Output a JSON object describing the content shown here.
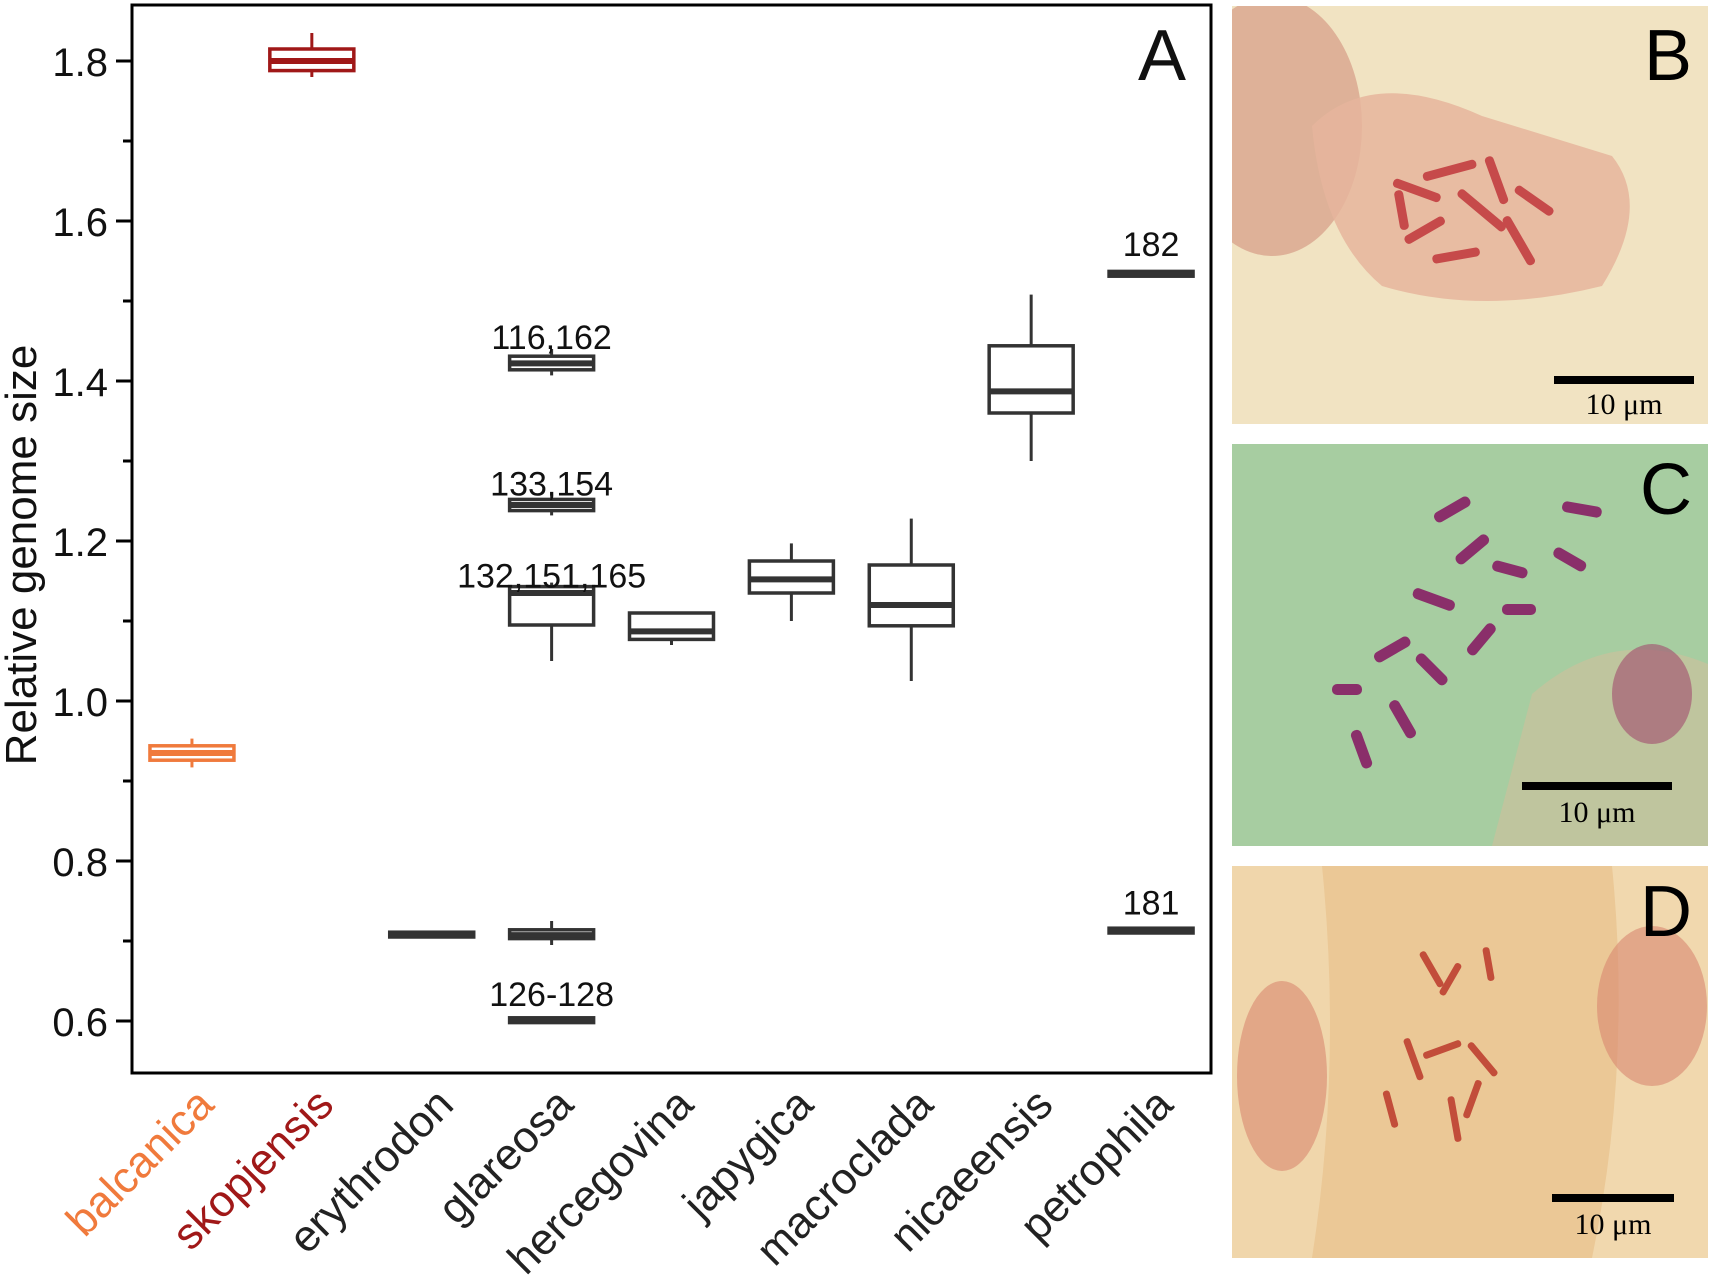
{
  "chart_data": {
    "type": "box",
    "panel_label": "A",
    "ylabel": "Relative genome size",
    "ylim": [
      0.535,
      1.87
    ],
    "yticks": [
      "0.6",
      "0.8",
      "1.0",
      "1.2",
      "1.4",
      "1.6",
      "1.8"
    ],
    "ytick_values": [
      0.6,
      0.8,
      1.0,
      1.2,
      1.4,
      1.6,
      1.8
    ],
    "categories": [
      "balcanica",
      "skopjensis",
      "erythrodon",
      "glareosa",
      "hercegovina",
      "japygica",
      "macroclada",
      "nicaeensis",
      "petrophila"
    ],
    "category_colors": [
      "#f07a3c",
      "#a01818",
      "#222222",
      "#222222",
      "#222222",
      "#222222",
      "#222222",
      "#222222",
      "#222222"
    ],
    "boxes": [
      {
        "category": 0,
        "color": "#f07a3c",
        "wmin": 0.917,
        "q1": 0.926,
        "median": 0.935,
        "q3": 0.944,
        "wmax": 0.953
      },
      {
        "category": 1,
        "color": "#a01818",
        "wmin": 1.78,
        "q1": 1.788,
        "median": 1.8,
        "q3": 1.815,
        "wmax": 1.835
      },
      {
        "category": 2,
        "color": "#333333",
        "wmin": 0.705,
        "q1": 0.705,
        "median": 0.708,
        "q3": 0.711,
        "wmax": 0.711
      },
      {
        "category": 3,
        "color": "#333333",
        "wmin": 0.597,
        "q1": 0.598,
        "median": 0.601,
        "q3": 0.604,
        "wmax": 0.605
      },
      {
        "category": 3,
        "color": "#333333",
        "wmin": 0.695,
        "q1": 0.703,
        "median": 0.708,
        "q3": 0.714,
        "wmax": 0.725
      },
      {
        "category": 3,
        "color": "#333333",
        "wmin": 1.05,
        "q1": 1.095,
        "median": 1.135,
        "q3": 1.143,
        "wmax": 1.148
      },
      {
        "category": 3,
        "color": "#333333",
        "wmin": 1.232,
        "q1": 1.238,
        "median": 1.245,
        "q3": 1.252,
        "wmax": 1.258
      },
      {
        "category": 3,
        "color": "#333333",
        "wmin": 1.407,
        "q1": 1.414,
        "median": 1.422,
        "q3": 1.431,
        "wmax": 1.44
      },
      {
        "category": 4,
        "color": "#333333",
        "wmin": 1.07,
        "q1": 1.077,
        "median": 1.087,
        "q3": 1.11,
        "wmax": 1.11
      },
      {
        "category": 5,
        "color": "#333333",
        "wmin": 1.1,
        "q1": 1.135,
        "median": 1.152,
        "q3": 1.175,
        "wmax": 1.197
      },
      {
        "category": 6,
        "color": "#333333",
        "wmin": 1.025,
        "q1": 1.094,
        "median": 1.12,
        "q3": 1.17,
        "wmax": 1.228
      },
      {
        "category": 7,
        "color": "#333333",
        "wmin": 1.3,
        "q1": 1.36,
        "median": 1.387,
        "q3": 1.444,
        "wmax": 1.508
      },
      {
        "category": 8,
        "color": "#333333",
        "wmin": 0.71,
        "q1": 0.71,
        "median": 0.713,
        "q3": 0.716,
        "wmax": 0.716
      },
      {
        "category": 8,
        "color": "#333333",
        "wmin": 1.531,
        "q1": 1.531,
        "median": 1.534,
        "q3": 1.537,
        "wmax": 1.537
      }
    ],
    "annotations": [
      {
        "text": "116,162",
        "category": 3,
        "y": 1.44
      },
      {
        "text": "133,154",
        "category": 3,
        "y": 1.257
      },
      {
        "text": "132,151,165",
        "category": 3,
        "y": 1.142
      },
      {
        "text": "126-128",
        "category": 3,
        "y": 0.619
      },
      {
        "text": "182",
        "category": 8,
        "y": 1.556
      },
      {
        "text": "181",
        "category": 8,
        "y": 0.733
      }
    ]
  },
  "panels": {
    "b": {
      "label": "B",
      "scale": "10 μm"
    },
    "c": {
      "label": "C",
      "scale": "10 μm"
    },
    "d": {
      "label": "D",
      "scale": "10 μm"
    }
  }
}
